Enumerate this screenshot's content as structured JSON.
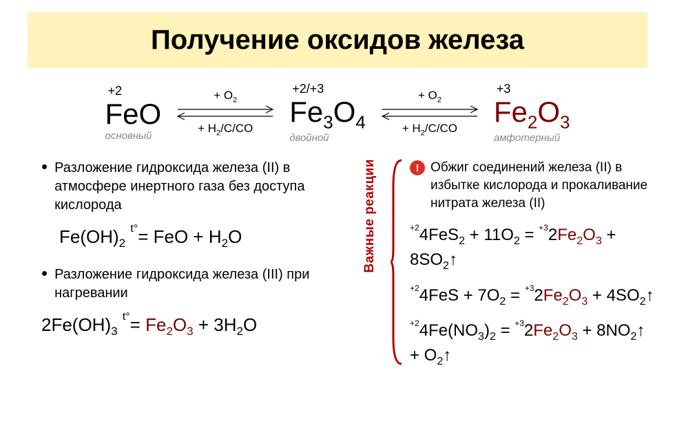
{
  "title": "Получение оксидов железа",
  "species": [
    {
      "ox": "+2",
      "formula_html": "FeO",
      "label": "основный",
      "color": "black"
    },
    {
      "ox": "+2/+3",
      "formula_html": "Fe<sub>3</sub>O<sub>4</sub>",
      "label": "двойной",
      "color": "black"
    },
    {
      "ox": "+3",
      "formula_html": "Fe<sub>2</sub>O<sub>3</sub>",
      "label": "амфотерный",
      "color": "dark"
    }
  ],
  "arrows": [
    {
      "top": "+ O<sub>2</sub>",
      "bottom": "+ H<sub>2</sub>/C/CO"
    },
    {
      "top": "+ O<sub>2</sub>",
      "bottom": "+ H<sub>2</sub>/C/CO"
    }
  ],
  "left": {
    "b1": "Разложение гидроксида железа (II) в атмосфере инертного газа без доступа кислорода",
    "eq1_html": "Fe(OH)<sub>2</sub> <span class='temp'>t°</span>= FeO + H<sub>2</sub>O",
    "b2": "Разложение гидроксида железа (III) при нагревании",
    "eq2_html": "2Fe(OH)<sub>3</sub> <span class='temp'>t°</span>= <span class='highlight'>Fe<sub>2</sub>O<sub>3</sub></span> + 3H<sub>2</sub>O"
  },
  "right": {
    "vlabel": "Важные реакции",
    "head": "Обжиг соединений железа (II) в избытке кислорода и прокаливание нитрата железа (II)",
    "eq1_html": "<span class='small-ox'>+2</span>4FeS<sub>2</sub> + 11O<sub>2</sub> = <span class='small-ox'>+3</span>2<span class='highlight'>Fe<sub>2</sub>O<sub>3</sub></span> + 8SO<sub>2</sub>↑",
    "eq2_html": "<span class='small-ox'>+2</span>4FeS + 7O<sub>2</sub> = <span class='small-ox'>+3</span>2<span class='highlight'>Fe<sub>2</sub>O<sub>3</sub></span> + 4SO<sub>2</sub>↑",
    "eq3_html": "<span class='small-ox'>+2</span>4Fe(NO<sub>3</sub>)<sub>2</sub> = <span class='small-ox'>+3</span>2<span class='highlight'>Fe<sub>2</sub>O<sub>3</sub></span> + 8NO<sub>2</sub>↑ + O<sub>2</sub>↑"
  },
  "colors": {
    "title_bg": "#fff2ba",
    "dark_red": "#7a0000",
    "bright_red": "#b20000",
    "grey": "#888888"
  }
}
